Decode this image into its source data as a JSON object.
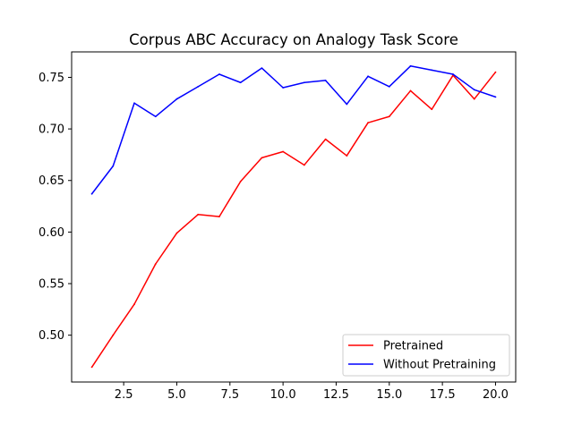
{
  "chart_data": {
    "type": "line",
    "title": "Corpus ABC Accuracy on Analogy Task Score",
    "xlabel": "",
    "ylabel": "",
    "x": [
      1,
      2,
      3,
      4,
      5,
      6,
      7,
      8,
      9,
      10,
      11,
      12,
      13,
      14,
      15,
      16,
      17,
      18,
      19,
      20
    ],
    "xlim": [
      0.05,
      20.95
    ],
    "ylim": [
      0.4546,
      0.7747
    ],
    "x_ticks": [
      2.5,
      5.0,
      7.5,
      10.0,
      12.5,
      15.0,
      17.5,
      20.0
    ],
    "x_tick_labels": [
      "2.5",
      "5.0",
      "7.5",
      "10.0",
      "12.5",
      "15.0",
      "17.5",
      "20.0"
    ],
    "y_ticks": [
      0.5,
      0.55,
      0.6,
      0.65,
      0.7,
      0.75
    ],
    "y_tick_labels": [
      "0.50",
      "0.55",
      "0.60",
      "0.65",
      "0.70",
      "0.75"
    ],
    "grid": false,
    "legend_position": "lower-right",
    "series": [
      {
        "name": "Pretrained",
        "color": "#ff0000",
        "values": [
          0.469,
          0.5,
          0.53,
          0.569,
          0.599,
          0.617,
          0.615,
          0.649,
          0.672,
          0.678,
          0.665,
          0.69,
          0.674,
          0.706,
          0.712,
          0.737,
          0.719,
          0.752,
          0.729,
          0.755
        ]
      },
      {
        "name": "Without Pretraining",
        "color": "#0000ff",
        "values": [
          0.637,
          0.664,
          0.725,
          0.712,
          0.729,
          0.741,
          0.753,
          0.745,
          0.759,
          0.74,
          0.745,
          0.747,
          0.724,
          0.751,
          0.741,
          0.761,
          0.757,
          0.753,
          0.738,
          0.731
        ]
      }
    ]
  }
}
